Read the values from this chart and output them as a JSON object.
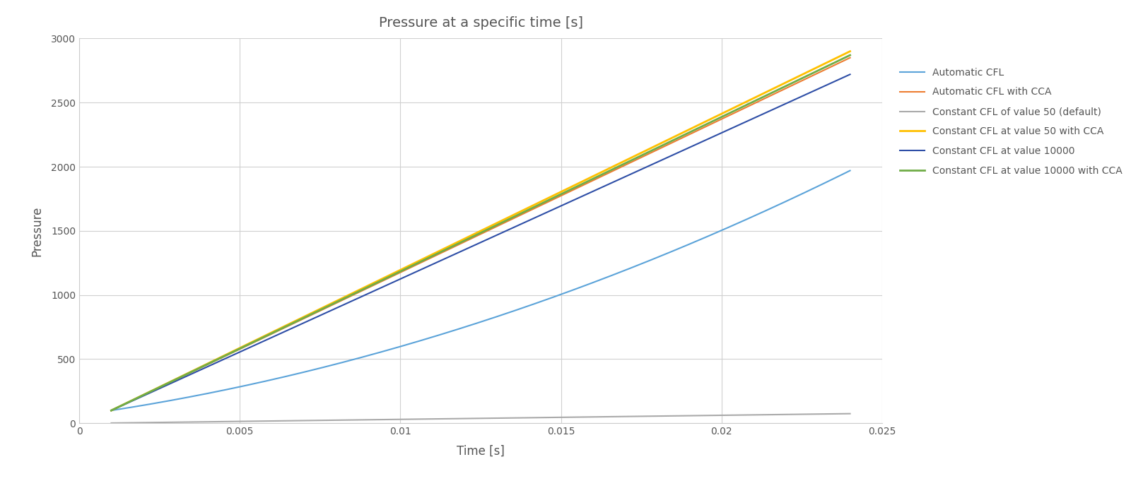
{
  "title": "Pressure at a specific time [s]",
  "xlabel": "Time [s]",
  "ylabel": "Pressure",
  "xlim": [
    0,
    0.025
  ],
  "ylim": [
    0,
    3000
  ],
  "xticks": [
    0,
    0.005,
    0.01,
    0.015,
    0.02,
    0.025
  ],
  "yticks": [
    0,
    500,
    1000,
    1500,
    2000,
    2500,
    3000
  ],
  "lines": [
    {
      "label": "Automatic CFL",
      "color": "#5BA3D9",
      "linewidth": 1.5,
      "type": "auto_cfl"
    },
    {
      "label": "Automatic CFL with CCA",
      "color": "#ED7D31",
      "linewidth": 1.5,
      "type": "linear_high"
    },
    {
      "label": "Constant CFL of value 50 (default)",
      "color": "#AAAAAA",
      "linewidth": 1.5,
      "type": "flat_low"
    },
    {
      "label": "Constant CFL at value 50 with CCA",
      "color": "#FFC000",
      "linewidth": 2.0,
      "type": "linear_high_slightly_above"
    },
    {
      "label": "Constant CFL at value 10000",
      "color": "#2E4EA6",
      "linewidth": 1.5,
      "type": "linear_mid"
    },
    {
      "label": "Constant CFL at value 10000 with CCA",
      "color": "#70AD47",
      "linewidth": 2.0,
      "type": "linear_highest"
    }
  ],
  "background_color": "#FFFFFF",
  "grid_color": "#D0D0D0",
  "title_fontsize": 14,
  "axis_label_fontsize": 12,
  "tick_fontsize": 10,
  "legend_fontsize": 10,
  "tick_color": "#555555",
  "title_color": "#555555"
}
